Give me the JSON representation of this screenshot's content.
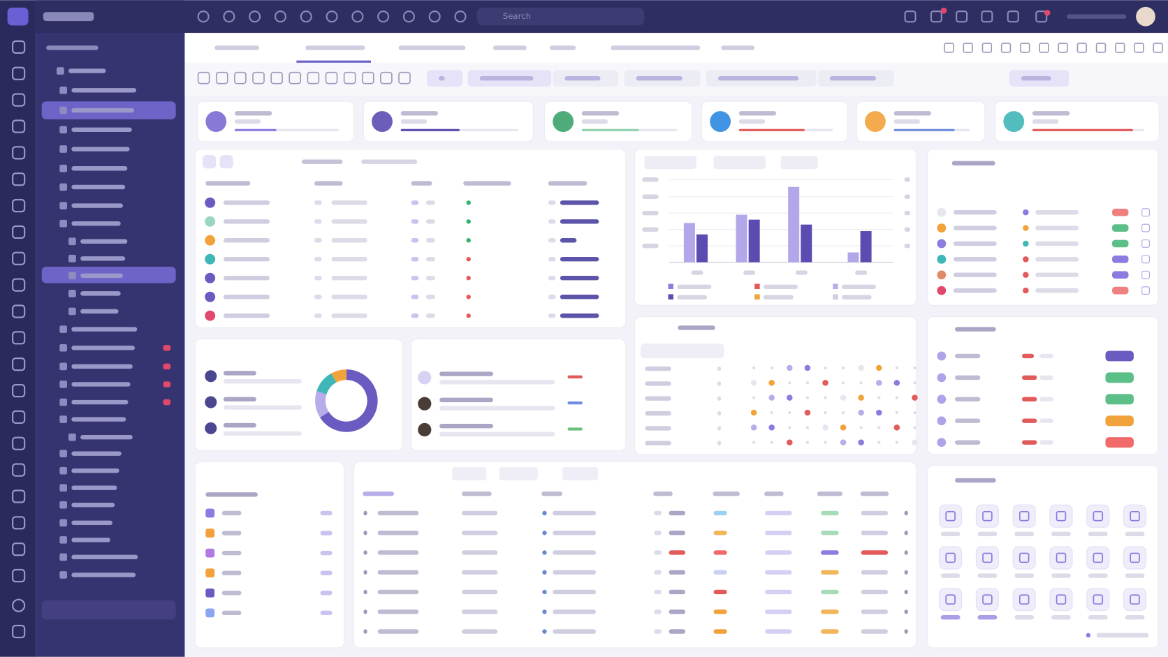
{
  "search_placeholder": "Search",
  "bar_chart": {
    "ylim": [
      0,
      5
    ],
    "series": [
      {
        "color": "#b3a7ea",
        "values": [
          2.4,
          2.9,
          4.6,
          0.6
        ]
      },
      {
        "color": "#5a4cb0",
        "values": [
          1.7,
          2.6,
          2.3,
          1.9
        ]
      }
    ]
  },
  "donut": {
    "values": [
      66,
      14,
      12,
      8
    ],
    "colors": [
      "#6a5bc0",
      "#b7adea",
      "#3fb6b8",
      "#f2a23a"
    ]
  }
}
